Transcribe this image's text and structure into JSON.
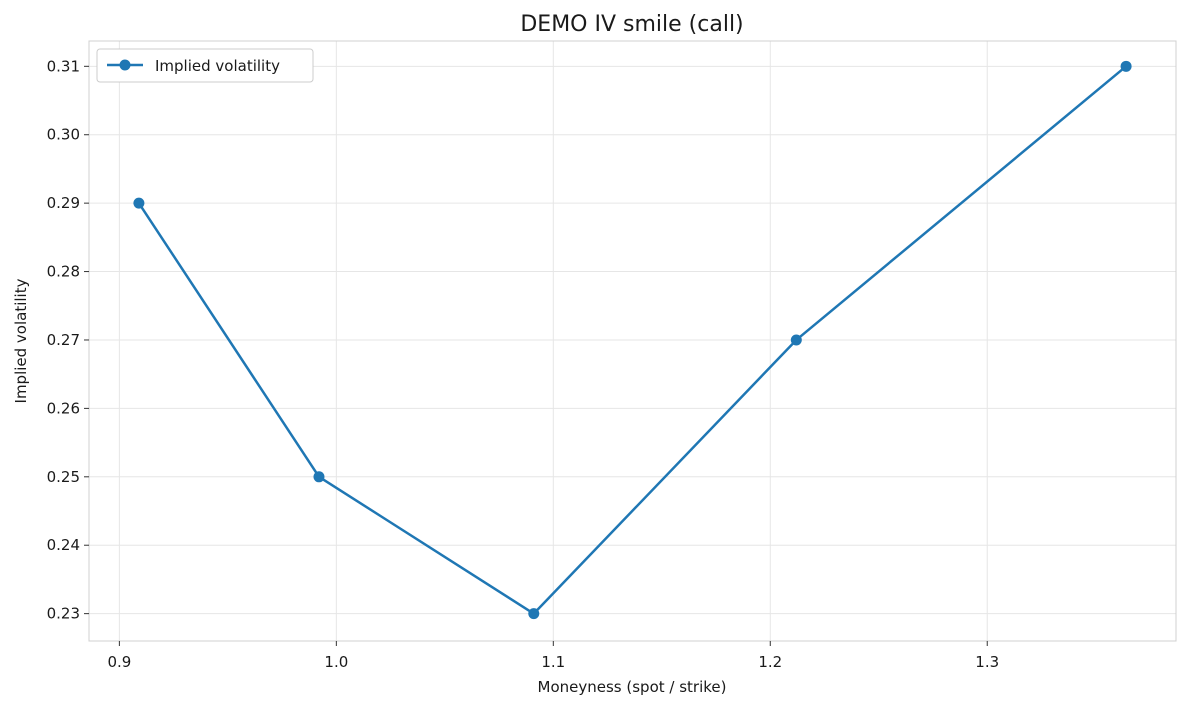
{
  "chart_data": {
    "type": "line",
    "title": "DEMO IV smile (call)",
    "xlabel": "Moneyness (spot / strike)",
    "ylabel": "Implied volatility",
    "xlim": [
      0.886,
      1.387
    ],
    "ylim": [
      0.226,
      0.3137
    ],
    "xticks": [
      "0.9",
      "1.0",
      "1.1",
      "1.2",
      "1.3"
    ],
    "yticks": [
      "0.23",
      "0.24",
      "0.25",
      "0.26",
      "0.27",
      "0.28",
      "0.29",
      "0.30",
      "0.31"
    ],
    "grid": true,
    "legend_position": "top-left",
    "series": [
      {
        "name": "Implied volatility",
        "color": "#1f77b4",
        "marker": "circle",
        "x": [
          0.909,
          0.992,
          1.091,
          1.212,
          1.364
        ],
        "y": [
          0.29,
          0.25,
          0.23,
          0.27,
          0.31
        ]
      }
    ]
  }
}
